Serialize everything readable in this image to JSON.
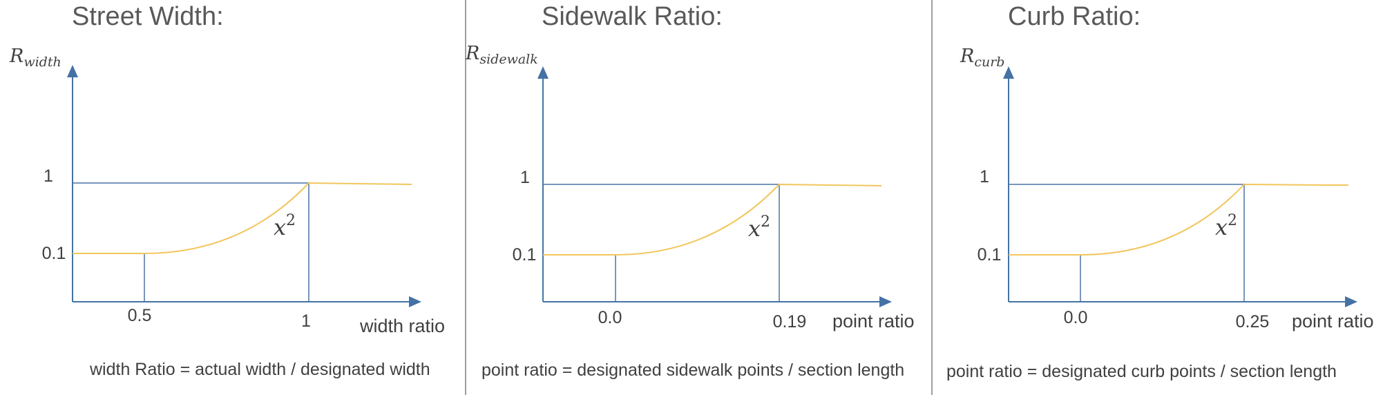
{
  "panels": [
    {
      "title": "Street Width:",
      "ylabel_main": "R",
      "ylabel_sub": "width",
      "y_ticks": [
        "1",
        "0.1"
      ],
      "x_ticks": [
        "0.5",
        "1"
      ],
      "xlabel": "width ratio",
      "curve_label_base": "x",
      "curve_label_exp": "2",
      "formula": "width Ratio = actual width / designated width"
    },
    {
      "title": "Sidewalk Ratio:",
      "ylabel_main": "R",
      "ylabel_sub": "sidewalk",
      "y_ticks": [
        "1",
        "0.1"
      ],
      "x_ticks": [
        "0.0",
        "0.19"
      ],
      "xlabel": "point ratio",
      "curve_label_base": "x",
      "curve_label_exp": "2",
      "formula": "point ratio = designated sidewalk points / section length"
    },
    {
      "title": "Curb Ratio:",
      "ylabel_main": "R",
      "ylabel_sub": "curb",
      "y_ticks": [
        "1",
        "0.1"
      ],
      "x_ticks": [
        "0.0",
        "0.25"
      ],
      "xlabel": "point ratio",
      "curve_label_base": "x",
      "curve_label_exp": "2",
      "formula": "point ratio = designated curb points / section length"
    }
  ],
  "colors": {
    "axis": "#4472a4",
    "curve": "#f2c65c",
    "text": "#404040",
    "title": "#595959",
    "separator": "#7f7f7f"
  }
}
